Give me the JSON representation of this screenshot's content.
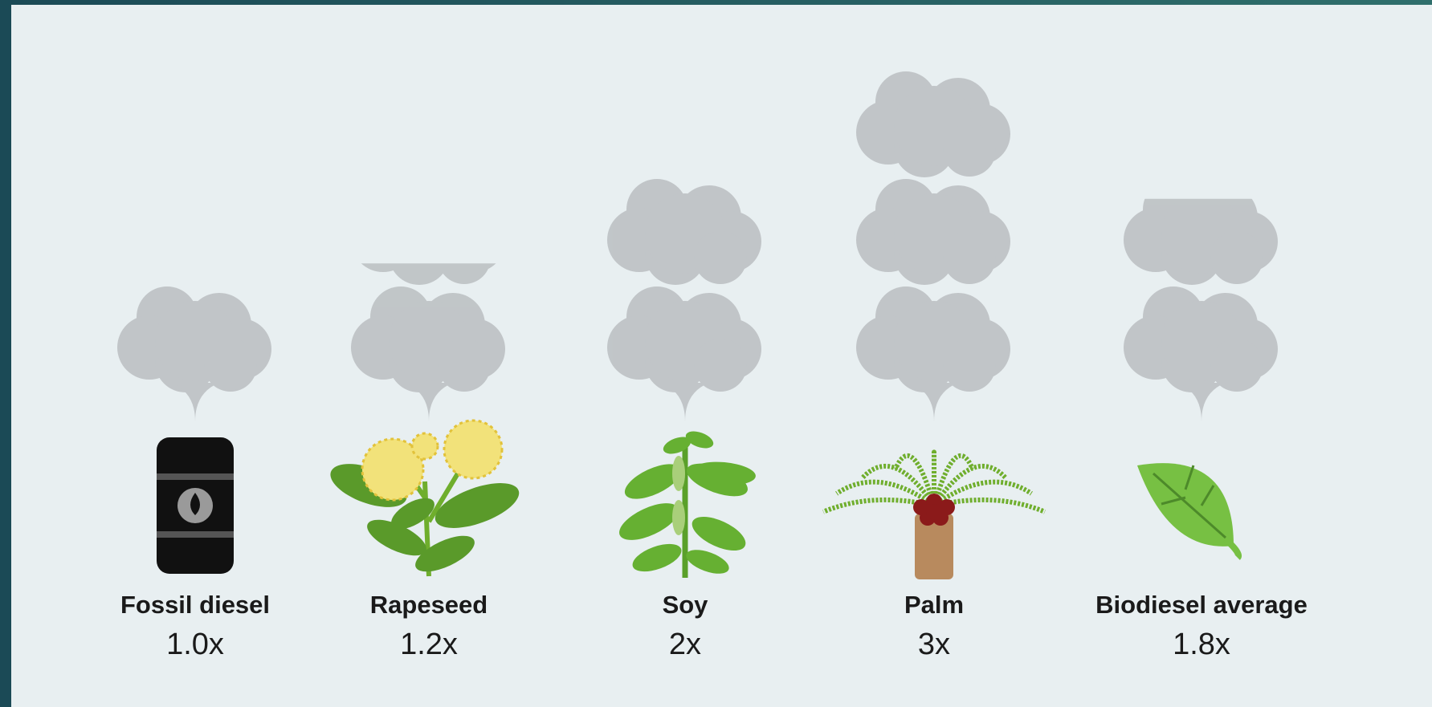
{
  "chart_data": {
    "type": "pictograph",
    "categories": [
      "Fossil diesel",
      "Rapeseed",
      "Soy",
      "Palm",
      "Biodiesel average"
    ],
    "values": [
      1.0,
      1.2,
      2,
      3,
      1.8
    ],
    "value_labels": [
      "1.0x",
      "1.2x",
      "2x",
      "3x",
      "1.8x"
    ],
    "color": "#bfc3c6"
  }
}
